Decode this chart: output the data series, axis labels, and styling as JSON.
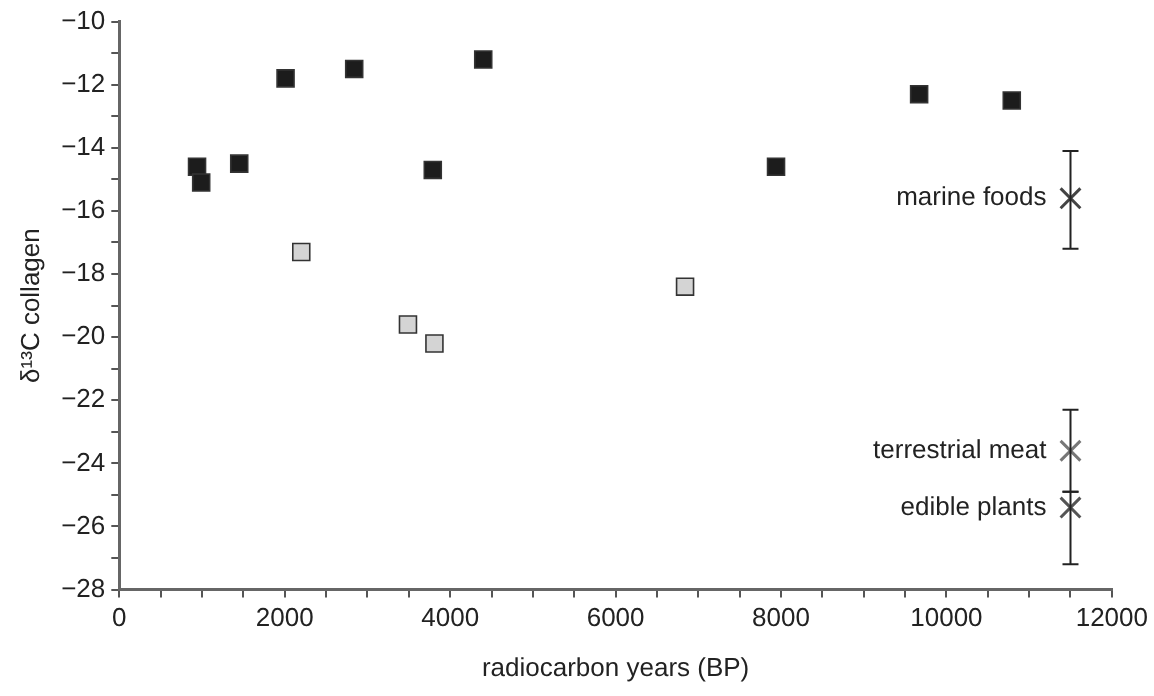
{
  "chart_data": {
    "type": "scatter",
    "xlabel": "radiocarbon years (BP)",
    "ylabel": "δ¹³C collagen",
    "xlim": [
      0,
      12000
    ],
    "ylim": [
      -28,
      -10
    ],
    "xticks": [
      0,
      {
        "value": 500,
        "label": null
      },
      {
        "value": 1000,
        "label": null
      },
      {
        "value": 1500,
        "label": null
      },
      2000,
      {
        "value": 2500,
        "label": null
      },
      {
        "value": 3000,
        "label": null
      },
      {
        "value": 3500,
        "label": null
      },
      4000,
      {
        "value": 4500,
        "label": null
      },
      {
        "value": 5000,
        "label": null
      },
      {
        "value": 5500,
        "label": null
      },
      6000,
      {
        "value": 6500,
        "label": null
      },
      {
        "value": 7000,
        "label": null
      },
      {
        "value": 7500,
        "label": null
      },
      8000,
      {
        "value": 8500,
        "label": null
      },
      {
        "value": 9000,
        "label": null
      },
      {
        "value": 9500,
        "label": null
      },
      10000,
      {
        "value": 10500,
        "label": null
      },
      {
        "value": 11000,
        "label": null
      },
      {
        "value": 11500,
        "label": null
      },
      12000
    ],
    "yticks": [
      {
        "value": -28,
        "label": "−28"
      },
      {
        "value": -27,
        "label": null
      },
      {
        "value": -26,
        "label": "−26"
      },
      {
        "value": -25,
        "label": null
      },
      {
        "value": -24,
        "label": "−24"
      },
      {
        "value": -23,
        "label": null
      },
      {
        "value": -22,
        "label": "−22"
      },
      {
        "value": -21,
        "label": null
      },
      {
        "value": -20,
        "label": "−20"
      },
      {
        "value": -19,
        "label": null
      },
      {
        "value": -18,
        "label": "−18"
      },
      {
        "value": -17,
        "label": null
      },
      {
        "value": -16,
        "label": "−16"
      },
      {
        "value": -15,
        "label": null
      },
      {
        "value": -14,
        "label": "−14"
      },
      {
        "value": -13,
        "label": null
      },
      {
        "value": -12,
        "label": "−12"
      },
      {
        "value": -11,
        "label": null
      },
      {
        "value": -10,
        "label": "−10"
      }
    ],
    "grid": false,
    "legend": false,
    "marker": "square",
    "series": [
      {
        "color": "#1c1c1c",
        "x": [
          940,
          990,
          1450,
          2010,
          2840,
          4400,
          3790,
          7940,
          9670,
          10790
        ],
        "values": [
          -14.6,
          -15.1,
          -14.5,
          -11.8,
          -11.5,
          -11.2,
          -14.7,
          -14.6,
          -12.3,
          -12.5
        ]
      },
      {
        "color": "#d4d4d4",
        "x": [
          2200,
          3490,
          3810,
          6840
        ],
        "values": [
          -17.3,
          -19.6,
          -20.2,
          -18.4
        ]
      },
      {
        "name": "marine foods",
        "color": "#444444",
        "marker": "cross",
        "x": [
          11500
        ],
        "values": [
          -15.6
        ],
        "errors": [
          [
            -17.2,
            -14.1
          ]
        ]
      },
      {
        "name": "terrestrial meat",
        "color": "#777777",
        "marker": "cross",
        "x": [
          11500
        ],
        "values": [
          -23.6
        ],
        "errors": [
          [
            -24.9,
            -22.3
          ]
        ]
      },
      {
        "name": "edible plants",
        "color": "#555555",
        "marker": "cross",
        "x": [
          11500
        ],
        "values": [
          -25.4
        ],
        "errors": [
          [
            -27.2,
            -24.9
          ]
        ]
      }
    ]
  }
}
